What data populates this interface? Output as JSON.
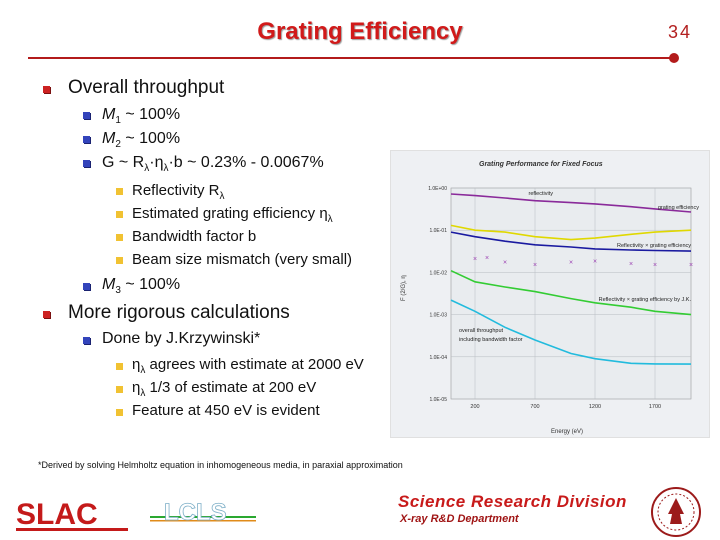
{
  "slide": {
    "title": "Grating Efficiency",
    "number": "34"
  },
  "content": {
    "overall_throughput": "Overall throughput",
    "m1": "M",
    "m1_sub": "1",
    "m1_rest": " ~ 100%",
    "m2": "M",
    "m2_sub": "2",
    "m2_rest": " ~ 100%",
    "g_line": "G ~ R",
    "g_line_sub1": "λ",
    "g_line_mid": "·η",
    "g_line_sub2": "λ",
    "g_line_rest": "·b ~ 0.23% - 0.0067%",
    "reflectivity": "Reflectivity R",
    "reflectivity_sub": "λ",
    "estimated": "Estimated grating efficiency η",
    "estimated_sub": "λ",
    "bandwidth": "Bandwidth factor b",
    "beam": "Beam size mismatch (very small)",
    "m3": "M",
    "m3_sub": "3",
    "m3_rest": " ~ 100%",
    "rigorous": "More rigorous calculations",
    "done_by": "Done by J.Krzywinski*",
    "agree_eta": "η",
    "agree_sub": "λ",
    "agree_rest": " agrees with estimate at 2000 eV",
    "third_eta": "η",
    "third_sub": "λ",
    "third_rest": " 1/3 of estimate at 200 eV",
    "feature": "Feature at 450 eV is evident"
  },
  "footnote": "*Derived by solving Helmholtz equation in inhomogeneous media, in paraxial approximation",
  "footer": {
    "division": "Science Research Division",
    "department": "X-ray R&D Department",
    "slac_logo_text": "SLAC",
    "lcls_logo_text": "LCLS"
  },
  "chart_data": {
    "type": "line",
    "title": "Grating Performance for Fixed Focus",
    "xlabel": "Energy (eV)",
    "ylabel": "F (2/G), η",
    "xlim": [
      0,
      2000
    ],
    "ylim_log10": [
      -5,
      0
    ],
    "yscale": "log",
    "x_ticks": [
      "200",
      "700",
      "1200",
      "1700"
    ],
    "y_ticks": [
      "1.0E+00",
      "1.0E-01",
      "1.0E-02",
      "1.0E-03",
      "1.0E-04",
      "1.0E-05"
    ],
    "grid": true,
    "colors": {
      "reflectivity": "#8a2a9a",
      "grating_efficiency": "#e0d800",
      "refl_x_grating": "#1a1aa0",
      "refl_x_grating_jk": "#9b3fb2",
      "overall": "#33cc33",
      "overall_bw": "#22bbdd"
    },
    "series": [
      {
        "name": "reflectivity",
        "x": [
          0,
          200,
          450,
          700,
          1000,
          1200,
          1500,
          1700,
          2000
        ],
        "y": [
          0.72,
          0.66,
          0.58,
          0.5,
          0.45,
          0.42,
          0.36,
          0.32,
          0.27
        ]
      },
      {
        "name": "grating efficiency",
        "x": [
          0,
          200,
          450,
          700,
          1000,
          1200,
          1500,
          1700,
          2000
        ],
        "y": [
          0.13,
          0.1,
          0.09,
          0.07,
          0.06,
          0.065,
          0.08,
          0.09,
          0.1
        ]
      },
      {
        "name": "Reflectivity × grating efficiency",
        "x": [
          0,
          200,
          450,
          700,
          1000,
          1200,
          1500,
          1700,
          2000
        ],
        "y": [
          0.09,
          0.07,
          0.055,
          0.045,
          0.04,
          0.036,
          0.034,
          0.033,
          0.032
        ]
      },
      {
        "name": "Reflectivity × grating efficiency by J.K.",
        "x": [
          200,
          300,
          450,
          700,
          1000,
          1200,
          1500,
          1700,
          2000
        ],
        "y": [
          0.021,
          0.022,
          0.017,
          0.015,
          0.017,
          0.018,
          0.016,
          0.015,
          0.015
        ]
      },
      {
        "name": "overall throughput",
        "x": [
          0,
          200,
          450,
          700,
          1000,
          1200,
          1500,
          1700,
          2000
        ],
        "y": [
          0.011,
          0.006,
          0.0045,
          0.0035,
          0.0024,
          0.0019,
          0.0015,
          0.0012,
          0.001
        ]
      },
      {
        "name": "including bandwidth factor",
        "x": [
          0,
          200,
          450,
          700,
          1000,
          1200,
          1500,
          1700,
          2000
        ],
        "y": [
          0.0022,
          0.0012,
          0.0005,
          0.00025,
          0.00012,
          9e-05,
          7e-05,
          6.8e-05,
          6.7e-05
        ]
      }
    ],
    "labels": {
      "reflectivity": "reflectivity",
      "grating_efficiency": "grating efficiency",
      "refl_x_grating": "Reflectivity × grating efficiency",
      "refl_x_grating_jk": "Reflectivity × grating efficiency by J.K.",
      "overall": "overall throughput",
      "overall_bw": "including bandwidth factor"
    }
  }
}
